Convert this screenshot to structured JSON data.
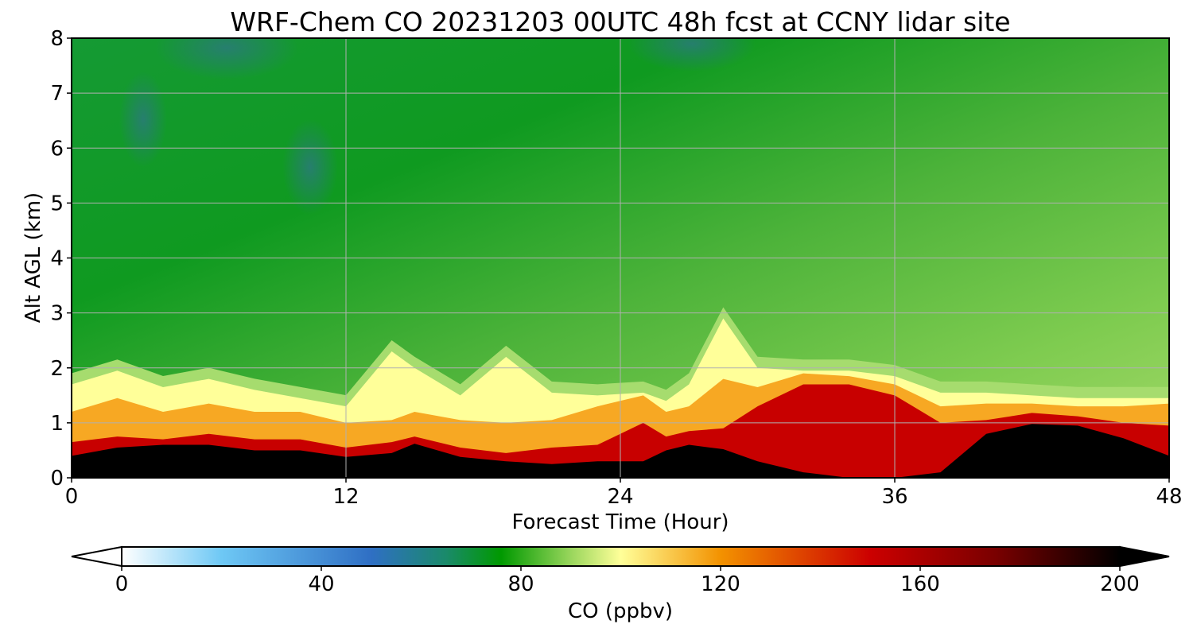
{
  "chart_data": {
    "type": "heatmap",
    "title": "WRF-Chem CO  20231203 00UTC 48h fcst at CCNY lidar site",
    "xlabel": "Forecast Time (Hour)",
    "ylabel": "Alt AGL (km)",
    "xlim": [
      0,
      48
    ],
    "ylim": [
      0,
      8
    ],
    "xticks": [
      "0",
      "12",
      "24",
      "36",
      "48"
    ],
    "yticks": [
      "0",
      "1",
      "2",
      "3",
      "4",
      "5",
      "6",
      "7",
      "8"
    ],
    "grid": true,
    "colorbar": {
      "label": "CO  (ppbv)",
      "ticks": [
        "0",
        "40",
        "80",
        "120",
        "160",
        "200"
      ],
      "range": [
        0,
        200
      ],
      "extend": "both",
      "orientation": "horizontal",
      "placement": "bottom",
      "colors": [
        {
          "v": 0,
          "c": "#ffffff"
        },
        {
          "v": 20,
          "c": "#6ec8f5"
        },
        {
          "v": 50,
          "c": "#2f6fc4"
        },
        {
          "v": 65,
          "c": "#1a8a6a"
        },
        {
          "v": 76,
          "c": "#009900"
        },
        {
          "v": 90,
          "c": "#99d65c"
        },
        {
          "v": 100,
          "c": "#ffff99"
        },
        {
          "v": 120,
          "c": "#f39200"
        },
        {
          "v": 150,
          "c": "#cc0000"
        },
        {
          "v": 175,
          "c": "#7a0000"
        },
        {
          "v": 200,
          "c": "#000000"
        }
      ]
    },
    "hours": [
      0,
      2,
      4,
      6,
      8,
      10,
      12,
      14,
      15,
      17,
      19,
      21,
      23,
      25,
      26,
      27,
      28.5,
      30,
      32,
      34,
      36,
      38,
      40,
      42,
      44,
      46,
      48
    ],
    "boundary_layer": {
      "black_top_km": [
        0.4,
        0.55,
        0.6,
        0.6,
        0.5,
        0.5,
        0.38,
        0.45,
        0.62,
        0.38,
        0.3,
        0.25,
        0.3,
        0.3,
        0.5,
        0.6,
        0.52,
        0.3,
        0.1,
        0.0,
        0.0,
        0.1,
        0.8,
        0.98,
        0.95,
        0.72,
        0.4
      ],
      "red_top_km": [
        0.65,
        0.75,
        0.7,
        0.8,
        0.7,
        0.7,
        0.55,
        0.65,
        0.75,
        0.55,
        0.45,
        0.55,
        0.6,
        1.0,
        0.75,
        0.85,
        0.9,
        1.3,
        1.7,
        1.7,
        1.5,
        1.0,
        1.05,
        1.18,
        1.12,
        1.0,
        0.95
      ],
      "orange_top_km": [
        1.2,
        1.45,
        1.2,
        1.35,
        1.2,
        1.2,
        1.0,
        1.05,
        1.2,
        1.05,
        1.0,
        1.05,
        1.3,
        1.5,
        1.2,
        1.3,
        1.8,
        1.65,
        1.9,
        1.85,
        1.7,
        1.3,
        1.35,
        1.35,
        1.3,
        1.3,
        1.35
      ],
      "yellow_top_km": [
        1.7,
        1.95,
        1.65,
        1.8,
        1.6,
        1.45,
        1.3,
        2.3,
        2.0,
        1.5,
        2.2,
        1.55,
        1.5,
        1.55,
        1.4,
        1.7,
        2.9,
        2.0,
        1.95,
        1.95,
        1.85,
        1.55,
        1.55,
        1.5,
        1.45,
        1.45,
        1.45
      ]
    }
  }
}
